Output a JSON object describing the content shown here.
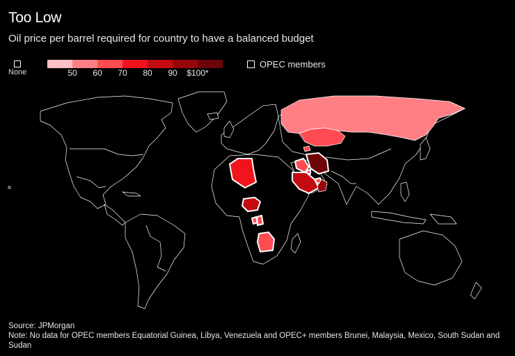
{
  "header": {
    "title": "Too Low",
    "subtitle": "Oil price per barrel required for country to have a balanced budget"
  },
  "legend": {
    "none_label": "None",
    "scale_colors": [
      "#ffc0c6",
      "#ff7f85",
      "#ff4b52",
      "#f0141c",
      "#c40b12",
      "#96070c",
      "#6e0408"
    ],
    "ticks": [
      "50",
      "60",
      "70",
      "80",
      "90",
      "$100*"
    ],
    "opec_label": "OPEC members"
  },
  "map_layers": {
    "land_fill": "#000000",
    "border_color": "#ffffff"
  },
  "highlighted_countries": [
    {
      "name": "Russia",
      "color": "#ff7f85",
      "opec": false
    },
    {
      "name": "Kazakhstan",
      "color": "#ff4b52",
      "opec": false
    },
    {
      "name": "Algeria",
      "color": "#f0141c",
      "opec": true
    },
    {
      "name": "Nigeria",
      "color": "#c40b12",
      "opec": true
    },
    {
      "name": "Gabon",
      "color": "#ff4b52",
      "opec": true
    },
    {
      "name": "Congo",
      "color": "#ff4b52",
      "opec": true
    },
    {
      "name": "Angola",
      "color": "#ff4b52",
      "opec": true
    },
    {
      "name": "Iraq",
      "color": "#ff4b52",
      "opec": true
    },
    {
      "name": "Iran",
      "color": "#6e0408",
      "opec": true
    },
    {
      "name": "Saudi Arabia",
      "color": "#c40b12",
      "opec": true
    },
    {
      "name": "Kuwait",
      "color": "#ff4b52",
      "opec": true
    },
    {
      "name": "United Arab Emirates",
      "color": "#ff4b52",
      "opec": true
    },
    {
      "name": "Oman",
      "color": "#96070c",
      "opec": false
    },
    {
      "name": "Azerbaijan",
      "color": "#ff4b52",
      "opec": false
    }
  ],
  "footer": {
    "source": "Source: JPMorgan",
    "note": "Note: No data for OPEC members Equatorial Guinea, Libya, Venezuela and OPEC+ members Brunei, Malaysia, Mexico, South Sudan and Sudan"
  }
}
